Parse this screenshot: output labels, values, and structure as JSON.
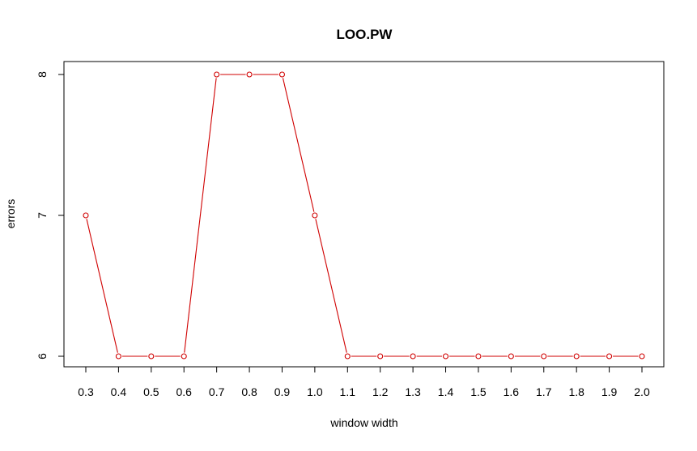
{
  "chart_data": {
    "type": "line",
    "title": "LOO.PW",
    "xlabel": "window width",
    "ylabel": "errors",
    "x": [
      0.3,
      0.4,
      0.5,
      0.6,
      0.7,
      0.8,
      0.9,
      1.0,
      1.1,
      1.2,
      1.3,
      1.4,
      1.5,
      1.6,
      1.7,
      1.8,
      1.9,
      2.0
    ],
    "x_tick_labels": [
      "0.3",
      "0.4",
      "0.5",
      "0.6",
      "0.7",
      "0.8",
      "0.9",
      "1.0",
      "1.1",
      "1.2",
      "1.3",
      "1.4",
      "1.5",
      "1.6",
      "1.7",
      "1.8",
      "1.9",
      "2.0"
    ],
    "y_ticks": [
      6,
      7,
      8
    ],
    "y_tick_labels": [
      "6",
      "7",
      "8"
    ],
    "series": [
      {
        "values": [
          7,
          6,
          6,
          6,
          8,
          8,
          8,
          7,
          6,
          6,
          6,
          6,
          6,
          6,
          6,
          6,
          6,
          6
        ],
        "color": "#d00000",
        "marker": "open-circle"
      }
    ],
    "ylim": [
      6,
      8
    ],
    "grid": false,
    "legend": "none"
  }
}
